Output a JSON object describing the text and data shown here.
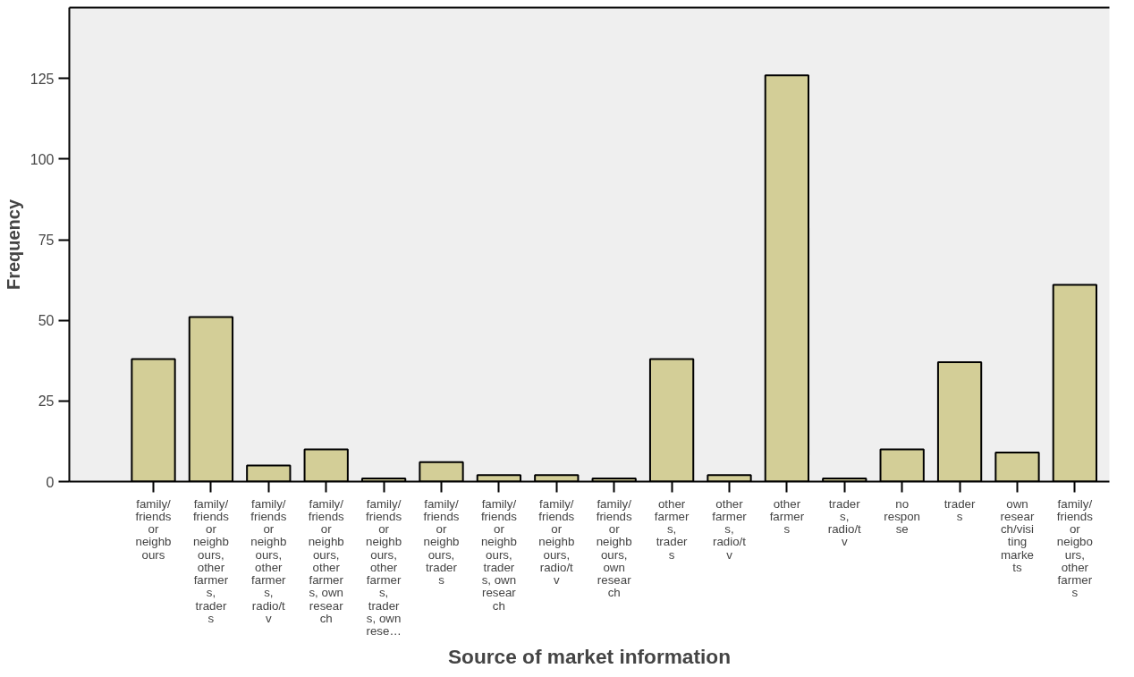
{
  "chart_data": {
    "type": "bar",
    "xlabel": "Source of market information",
    "ylabel": "Frequency",
    "categories": [
      "family/\nfriends\nor\nneighb\nours",
      "family/\nfriends\nor\nneighb\nours,\nother\nfarmer\ns,\ntrader\ns",
      "family/\nfriends\nor\nneighb\nours,\nother\nfarmer\ns,\nradio/t\nv",
      "family/\nfriends\nor\nneighb\nours,\nother\nfarmer\ns, own\nresear\nch",
      "family/\nfriends\nor\nneighb\nours,\nother\nfarmer\ns,\ntrader\ns, own\nrese…",
      "family/\nfriends\nor\nneighb\nours,\ntrader\ns",
      "family/\nfriends\nor\nneighb\nours,\ntrader\ns, own\nresear\nch",
      "family/\nfriends\nor\nneighb\nours,\nradio/t\nv",
      "family/\nfriends\nor\nneighb\nours,\nown\nresear\nch",
      "other\nfarmer\ns,\ntrader\ns",
      "other\nfarmer\ns,\nradio/t\nv",
      "other\nfarmer\ns",
      "trader\ns,\nradio/t\nv",
      "no\nrespon\nse",
      "trader\ns",
      "own\nresear\nch/visi\nting\nmarke\nts",
      "family/\nfriends\nor\nneigbo\nurs,\nother\nfarmer\ns"
    ],
    "values": [
      38,
      51,
      5,
      10,
      1,
      6,
      2,
      2,
      1,
      38,
      2,
      126,
      1,
      10,
      37,
      9,
      61
    ],
    "color": "#d3ce97",
    "ylim": [
      0,
      147
    ],
    "yticks": [
      0,
      25,
      50,
      75,
      100,
      125
    ],
    "grid": false
  }
}
